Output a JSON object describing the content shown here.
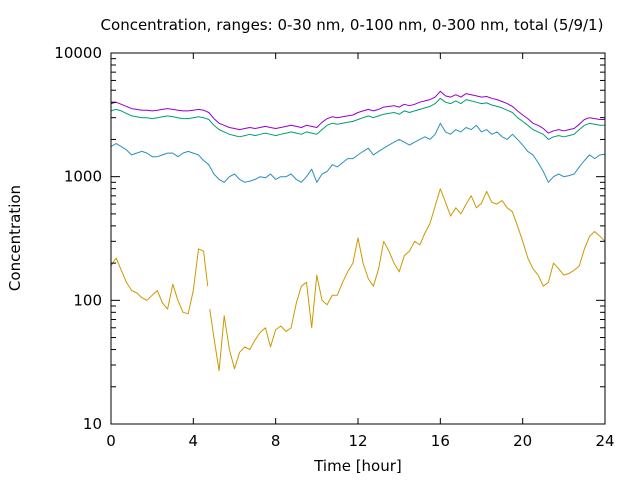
{
  "chart_data": {
    "type": "line",
    "title": "Concentration, ranges: 0-30 nm, 0-100 nm, 0-300 nm, total (5/9/1)",
    "xlabel": "Time [hour]",
    "ylabel": "Concentration",
    "xlim": [
      0,
      24
    ],
    "ylim": [
      10,
      10000
    ],
    "yscale": "log",
    "grid": false,
    "legend": "none",
    "xticks": [
      0,
      4,
      8,
      12,
      16,
      20,
      24
    ],
    "yticks": [
      10,
      100,
      1000,
      10000
    ],
    "ytick_labels": [
      "10",
      "100",
      "1000",
      "10000"
    ],
    "series": [
      {
        "color": "#cc9900",
        "x": [
          0,
          0.25,
          0.5,
          0.75,
          1,
          1.25,
          1.5,
          1.75,
          2,
          2.25,
          2.5,
          2.75,
          3,
          3.25,
          3.5,
          3.75,
          4,
          4.25,
          4.5,
          4.7,
          null,
          4.8,
          5,
          5.25,
          5.5,
          5.75,
          6,
          6.25,
          6.5,
          6.75,
          7,
          7.25,
          7.5,
          7.75,
          8,
          8.25,
          8.5,
          8.75,
          9,
          9.25,
          9.5,
          9.75,
          10,
          10.25,
          10.5,
          10.75,
          11,
          11.25,
          11.5,
          11.75,
          12,
          12.25,
          12.5,
          12.75,
          13,
          13.25,
          13.5,
          13.75,
          14,
          14.25,
          14.5,
          14.75,
          15,
          15.25,
          15.5,
          15.75,
          16,
          16.25,
          16.5,
          16.75,
          17,
          17.25,
          17.5,
          17.75,
          18,
          18.25,
          18.5,
          18.75,
          19,
          19.25,
          19.5,
          19.75,
          20,
          20.25,
          20.5,
          20.75,
          21,
          21.25,
          21.5,
          21.75,
          22,
          22.25,
          22.5,
          22.75,
          23,
          23.25,
          23.5,
          23.75,
          24
        ],
        "y": [
          190,
          220,
          175,
          140,
          120,
          115,
          105,
          100,
          110,
          120,
          95,
          85,
          135,
          100,
          80,
          78,
          120,
          260,
          250,
          130,
          null,
          85,
          50,
          27,
          75,
          40,
          28,
          38,
          42,
          40,
          48,
          55,
          60,
          42,
          58,
          62,
          56,
          60,
          95,
          130,
          140,
          60,
          160,
          100,
          92,
          110,
          110,
          140,
          170,
          200,
          320,
          200,
          150,
          130,
          180,
          300,
          250,
          200,
          170,
          230,
          250,
          300,
          280,
          350,
          420,
          580,
          800,
          620,
          480,
          560,
          500,
          600,
          700,
          560,
          610,
          760,
          620,
          600,
          640,
          560,
          520,
          400,
          300,
          220,
          180,
          160,
          130,
          140,
          200,
          180,
          160,
          165,
          175,
          190,
          260,
          330,
          360,
          330,
          300
        ]
      },
      {
        "color": "#2a8fbd",
        "x": [
          0,
          0.25,
          0.5,
          0.75,
          1,
          1.25,
          1.5,
          1.75,
          2,
          2.25,
          2.5,
          2.75,
          3,
          3.25,
          3.5,
          3.75,
          4,
          4.25,
          4.5,
          4.75,
          5,
          5.25,
          5.5,
          5.75,
          6,
          6.25,
          6.5,
          6.75,
          7,
          7.25,
          7.5,
          7.75,
          8,
          8.25,
          8.5,
          8.75,
          9,
          9.25,
          9.5,
          9.75,
          10,
          10.25,
          10.5,
          10.75,
          11,
          11.25,
          11.5,
          11.75,
          12,
          12.25,
          12.5,
          12.75,
          13,
          13.25,
          13.5,
          13.75,
          14,
          14.25,
          14.5,
          14.75,
          15,
          15.25,
          15.5,
          15.75,
          16,
          16.25,
          16.5,
          16.75,
          17,
          17.25,
          17.5,
          17.75,
          18,
          18.25,
          18.5,
          18.75,
          19,
          19.25,
          19.5,
          19.75,
          20,
          20.25,
          20.5,
          20.75,
          21,
          21.25,
          21.5,
          21.75,
          22,
          22.25,
          22.5,
          22.75,
          23,
          23.25,
          23.5,
          23.75,
          24
        ],
        "y": [
          1750,
          1850,
          1750,
          1650,
          1500,
          1550,
          1600,
          1550,
          1450,
          1450,
          1500,
          1550,
          1550,
          1450,
          1550,
          1600,
          1550,
          1500,
          1350,
          1250,
          1050,
          950,
          900,
          1000,
          1050,
          950,
          900,
          920,
          950,
          1000,
          980,
          1050,
          950,
          1000,
          1000,
          1050,
          950,
          900,
          1000,
          1150,
          900,
          1050,
          1100,
          1250,
          1200,
          1300,
          1400,
          1400,
          1500,
          1600,
          1700,
          1500,
          1600,
          1700,
          1800,
          1900,
          2000,
          1900,
          1800,
          1900,
          2000,
          2100,
          2000,
          2200,
          2700,
          2300,
          2200,
          2400,
          2300,
          2500,
          2400,
          2600,
          2300,
          2400,
          2200,
          2300,
          2100,
          2000,
          2200,
          2000,
          1800,
          1600,
          1500,
          1300,
          1100,
          900,
          1000,
          1050,
          1000,
          1020,
          1050,
          1200,
          1350,
          1500,
          1400,
          1500,
          1520
        ]
      },
      {
        "color": "#009e73",
        "x": [
          0,
          0.25,
          0.5,
          0.75,
          1,
          1.25,
          1.5,
          1.75,
          2,
          2.25,
          2.5,
          2.75,
          3,
          3.25,
          3.5,
          3.75,
          4,
          4.25,
          4.5,
          4.75,
          5,
          5.25,
          5.5,
          5.75,
          6,
          6.25,
          6.5,
          6.75,
          7,
          7.25,
          7.5,
          7.75,
          8,
          8.25,
          8.5,
          8.75,
          9,
          9.25,
          9.5,
          9.75,
          10,
          10.25,
          10.5,
          10.75,
          11,
          11.25,
          11.5,
          11.75,
          12,
          12.25,
          12.5,
          12.75,
          13,
          13.25,
          13.5,
          13.75,
          14,
          14.25,
          14.5,
          14.75,
          15,
          15.25,
          15.5,
          15.75,
          16,
          16.25,
          16.5,
          16.75,
          17,
          17.25,
          17.5,
          17.75,
          18,
          18.25,
          18.5,
          18.75,
          19,
          19.25,
          19.5,
          19.75,
          20,
          20.25,
          20.5,
          20.75,
          21,
          21.25,
          21.5,
          21.75,
          22,
          22.25,
          22.5,
          22.75,
          23,
          23.25,
          23.5,
          23.75,
          24
        ],
        "y": [
          3400,
          3500,
          3400,
          3250,
          3100,
          3050,
          3000,
          3000,
          2950,
          3000,
          3050,
          3100,
          3050,
          3000,
          2950,
          2950,
          3000,
          3050,
          3000,
          2900,
          2600,
          2400,
          2300,
          2200,
          2150,
          2100,
          2150,
          2200,
          2150,
          2200,
          2250,
          2200,
          2150,
          2200,
          2250,
          2300,
          2250,
          2200,
          2300,
          2250,
          2200,
          2400,
          2600,
          2700,
          2650,
          2700,
          2750,
          2800,
          2900,
          3000,
          3100,
          3000,
          3100,
          3200,
          3250,
          3300,
          3200,
          3400,
          3300,
          3400,
          3500,
          3600,
          3700,
          3900,
          4300,
          4000,
          3900,
          4100,
          3900,
          4200,
          4100,
          4000,
          3900,
          3950,
          3800,
          3700,
          3600,
          3450,
          3300,
          3000,
          2800,
          2600,
          2400,
          2300,
          2200,
          2000,
          2100,
          2150,
          2100,
          2150,
          2200,
          2400,
          2600,
          2700,
          2650,
          2600,
          2600
        ]
      },
      {
        "color": "#9400d3",
        "x": [
          0,
          0.25,
          0.5,
          0.75,
          1,
          1.25,
          1.5,
          1.75,
          2,
          2.25,
          2.5,
          2.75,
          3,
          3.25,
          3.5,
          3.75,
          4,
          4.25,
          4.5,
          4.75,
          5,
          5.25,
          5.5,
          5.75,
          6,
          6.25,
          6.5,
          6.75,
          7,
          7.25,
          7.5,
          7.75,
          8,
          8.25,
          8.5,
          8.75,
          9,
          9.25,
          9.5,
          9.75,
          10,
          10.25,
          10.5,
          10.75,
          11,
          11.25,
          11.5,
          11.75,
          12,
          12.25,
          12.5,
          12.75,
          13,
          13.25,
          13.5,
          13.75,
          14,
          14.25,
          14.5,
          14.75,
          15,
          15.25,
          15.5,
          15.75,
          16,
          16.25,
          16.5,
          16.75,
          17,
          17.25,
          17.5,
          17.75,
          18,
          18.25,
          18.5,
          18.75,
          19,
          19.25,
          19.5,
          19.75,
          20,
          20.25,
          20.5,
          20.75,
          21,
          21.25,
          21.5,
          21.75,
          22,
          22.25,
          22.5,
          22.75,
          23,
          23.25,
          23.5,
          23.75,
          24
        ],
        "y": [
          3900,
          4000,
          3850,
          3700,
          3550,
          3500,
          3450,
          3450,
          3400,
          3450,
          3500,
          3550,
          3500,
          3450,
          3400,
          3400,
          3450,
          3500,
          3450,
          3300,
          2950,
          2700,
          2600,
          2500,
          2450,
          2400,
          2450,
          2500,
          2450,
          2500,
          2550,
          2500,
          2450,
          2500,
          2550,
          2600,
          2550,
          2500,
          2600,
          2550,
          2500,
          2750,
          2950,
          3050,
          3000,
          3050,
          3100,
          3150,
          3300,
          3400,
          3500,
          3400,
          3500,
          3650,
          3700,
          3750,
          3650,
          3850,
          3750,
          3850,
          4000,
          4100,
          4200,
          4400,
          4900,
          4500,
          4400,
          4600,
          4400,
          4700,
          4600,
          4500,
          4400,
          4450,
          4300,
          4200,
          4050,
          3900,
          3700,
          3400,
          3150,
          2950,
          2700,
          2600,
          2450,
          2250,
          2350,
          2400,
          2350,
          2400,
          2450,
          2650,
          2900,
          3000,
          2950,
          2900,
          2900
        ]
      }
    ]
  }
}
